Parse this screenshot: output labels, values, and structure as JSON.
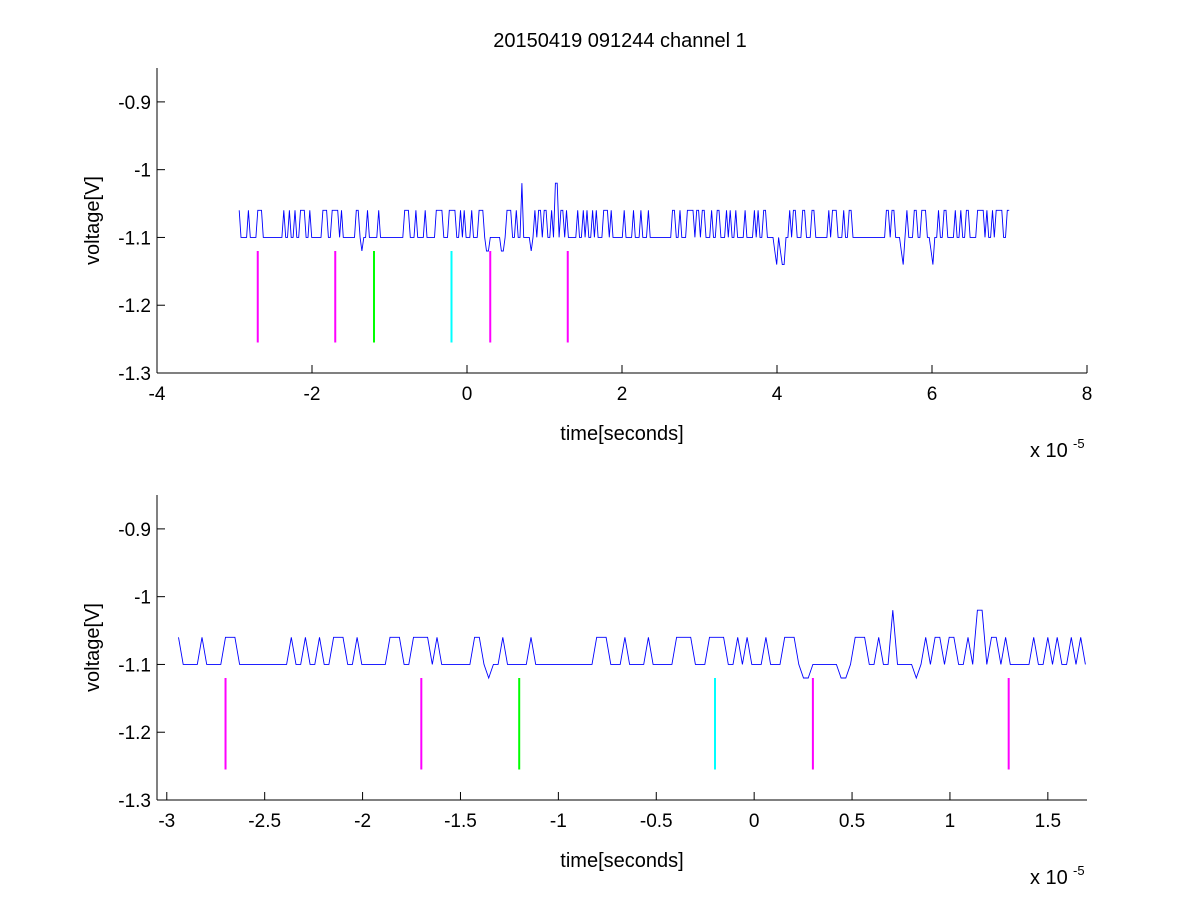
{
  "figure": {
    "title": "20150419 091244 channel 1"
  },
  "chart_data": [
    {
      "type": "line",
      "title": "20150419 091244 channel 1",
      "xlabel": "time[seconds]",
      "ylabel": "voltage[V]",
      "x_multiplier": "x 10",
      "x_multiplier_exp": "-5",
      "xlim": [
        -4,
        8
      ],
      "ylim": [
        -1.3,
        -0.85
      ],
      "xticks": [
        -4,
        -2,
        0,
        2,
        4,
        6,
        8
      ],
      "xtick_labels": [
        "-4",
        "-2",
        "0",
        "2",
        "4",
        "6",
        "8"
      ],
      "yticks": [
        -1.3,
        -1.2,
        -1.1,
        -1,
        -0.9
      ],
      "ytick_labels": [
        "-1.3",
        "-1.2",
        "-1.1",
        "-1",
        "-0.9"
      ],
      "grid": false,
      "series": [
        {
          "color": "#0000ff",
          "signal": {
            "x_start": -2.94,
            "x_end": 7.0,
            "baseline": -1.1,
            "high_level": -1.06,
            "low_level": -1.14,
            "spikes": [
              {
                "x": 0.7,
                "y": -1.02
              },
              {
                "x": 1.15,
                "y": -1.02
              }
            ]
          }
        }
      ],
      "markers": [
        {
          "x": -2.7,
          "y_top": -1.12,
          "y_bottom": -1.255,
          "color": "#ff00ff"
        },
        {
          "x": -1.7,
          "y_top": -1.12,
          "y_bottom": -1.255,
          "color": "#ff00ff"
        },
        {
          "x": -1.2,
          "y_top": -1.12,
          "y_bottom": -1.255,
          "color": "#00ff00"
        },
        {
          "x": -0.2,
          "y_top": -1.12,
          "y_bottom": -1.255,
          "color": "#00ffff"
        },
        {
          "x": 0.3,
          "y_top": -1.12,
          "y_bottom": -1.255,
          "color": "#ff00ff"
        },
        {
          "x": 1.3,
          "y_top": -1.12,
          "y_bottom": -1.255,
          "color": "#ff00ff"
        }
      ]
    },
    {
      "type": "line",
      "title": "",
      "xlabel": "time[seconds]",
      "ylabel": "voltage[V]",
      "x_multiplier": "x 10",
      "x_multiplier_exp": "-5",
      "xlim": [
        -3.05,
        1.7
      ],
      "ylim": [
        -1.3,
        -0.85
      ],
      "xticks": [
        -3,
        -2.5,
        -2,
        -1.5,
        -1,
        -0.5,
        0,
        0.5,
        1,
        1.5
      ],
      "xtick_labels": [
        "-3",
        "-2.5",
        "-2",
        "-1.5",
        "-1",
        "-0.5",
        "0",
        "0.5",
        "1",
        "1.5"
      ],
      "yticks": [
        -1.3,
        -1.2,
        -1.1,
        -1,
        -0.9
      ],
      "ytick_labels": [
        "-1.3",
        "-1.2",
        "-1.1",
        "-1",
        "-0.9"
      ],
      "grid": false,
      "series": [
        {
          "color": "#0000ff",
          "signal": {
            "x_start": -2.94,
            "x_end": 1.7,
            "baseline": -1.1,
            "high_level": -1.06,
            "low_level": -1.14,
            "spikes": [
              {
                "x": 0.7,
                "y": -1.02
              },
              {
                "x": 1.15,
                "y": -1.02
              }
            ]
          }
        }
      ],
      "markers": [
        {
          "x": -2.7,
          "y_top": -1.12,
          "y_bottom": -1.255,
          "color": "#ff00ff"
        },
        {
          "x": -1.7,
          "y_top": -1.12,
          "y_bottom": -1.255,
          "color": "#ff00ff"
        },
        {
          "x": -1.2,
          "y_top": -1.12,
          "y_bottom": -1.255,
          "color": "#00ff00"
        },
        {
          "x": -0.2,
          "y_top": -1.12,
          "y_bottom": -1.255,
          "color": "#00ffff"
        },
        {
          "x": 0.3,
          "y_top": -1.12,
          "y_bottom": -1.255,
          "color": "#ff00ff"
        },
        {
          "x": 1.3,
          "y_top": -1.12,
          "y_bottom": -1.255,
          "color": "#ff00ff"
        }
      ]
    }
  ]
}
